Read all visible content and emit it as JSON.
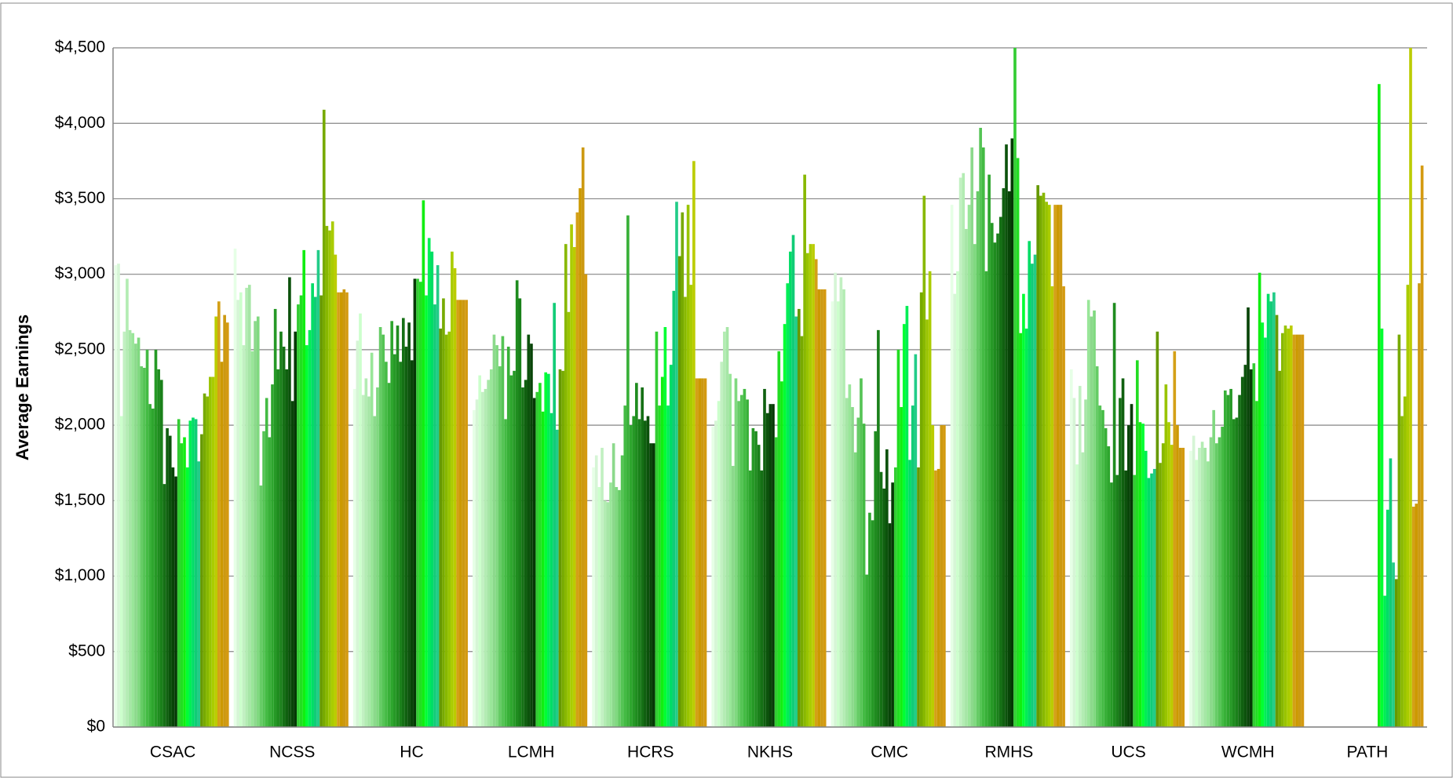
{
  "chart_data": {
    "type": "bar",
    "y_label": "Average Earnings",
    "categories": [
      "CSAC",
      "NCSS",
      "HC",
      "LCMH",
      "HCRS",
      "NKHS",
      "CMC",
      "RMHS",
      "UCS",
      "WCMH",
      "PATH"
    ],
    "ylim": [
      0,
      4500
    ],
    "yticks": [
      {
        "value": 0,
        "label": "$0"
      },
      {
        "value": 500,
        "label": "$500"
      },
      {
        "value": 1000,
        "label": "$1,000"
      },
      {
        "value": 1500,
        "label": "$1,500"
      },
      {
        "value": 2000,
        "label": "$2,000"
      },
      {
        "value": 2500,
        "label": "$2,500"
      },
      {
        "value": 3000,
        "label": "$3,000"
      },
      {
        "value": 3500,
        "label": "$3,500"
      },
      {
        "value": 4000,
        "label": "$4,000"
      },
      {
        "value": 4500,
        "label": "$4,500"
      }
    ],
    "grid": true,
    "colors": [
      "#e6ffe6",
      "#d6f5d6",
      "#ccffcc",
      "#c2f0c2",
      "#b3ecb3",
      "#a6e6a6",
      "#99e699",
      "#8cd98c",
      "#80d980",
      "#66cc66",
      "#55c455",
      "#44bb44",
      "#38b038",
      "#2ea62e",
      "#269926",
      "#1f8c1f",
      "#1a801a",
      "#157015",
      "#106010",
      "#0c520c",
      "#084408",
      "#053805",
      "#33cc33",
      "#22dd22",
      "#11ee11",
      "#00ff33",
      "#00ee55",
      "#00dd66",
      "#11cc77",
      "#22cc88",
      "#669900",
      "#77aa00",
      "#88b800",
      "#99c400",
      "#aacc00",
      "#bbcc00",
      "#d4a017",
      "#cc9900",
      "#cc9911",
      "#d49a11"
    ],
    "series_values": [
      [
        3060,
        3070,
        2060,
        2620,
        2970,
        2630,
        2610,
        2540,
        2580,
        2390,
        2380,
        2500,
        2140,
        2110,
        2500,
        2370,
        2300,
        1610,
        1980,
        1930,
        1720,
        1660,
        2040,
        1880,
        1920,
        1720,
        2030,
        2050,
        2040,
        1760,
        1940,
        2210,
        2190,
        2320,
        2320,
        2720,
        2820,
        2420,
        2730,
        2680
      ],
      [
        3170,
        2830,
        2880,
        2530,
        2910,
        2930,
        2490,
        2690,
        2720,
        1600,
        1960,
        2180,
        1920,
        2270,
        2770,
        2370,
        2620,
        2520,
        2370,
        2980,
        2160,
        2620,
        2800,
        2860,
        3160,
        2530,
        2630,
        2940,
        2850,
        3160,
        2860,
        4090,
        3320,
        3290,
        3350,
        3130,
        2880,
        2880,
        2900,
        2880
      ],
      [
        2240,
        2560,
        2740,
        2200,
        2310,
        2190,
        2480,
        2060,
        2250,
        2650,
        2600,
        2420,
        2280,
        2690,
        2470,
        2660,
        2420,
        2710,
        2520,
        2680,
        2430,
        2970,
        2970,
        2950,
        3490,
        2860,
        3240,
        3150,
        2800,
        3060,
        2640,
        2840,
        2600,
        2620,
        3150,
        3040,
        2830,
        2830,
        2830,
        2830
      ],
      [
        2100,
        2170,
        2330,
        2220,
        2240,
        2300,
        2370,
        2600,
        2530,
        2390,
        2590,
        2040,
        2520,
        2330,
        2360,
        2960,
        2840,
        2250,
        2300,
        2600,
        2540,
        2180,
        2220,
        2280,
        2090,
        2350,
        2340,
        2080,
        2810,
        1970,
        2370,
        2360,
        3200,
        2750,
        3330,
        3180,
        3410,
        3570,
        3840,
        3000
      ],
      [
        1720,
        1800,
        1590,
        1850,
        1500,
        1490,
        1620,
        1880,
        1590,
        1570,
        1800,
        2130,
        3390,
        2000,
        2060,
        2280,
        2040,
        2250,
        2030,
        2060,
        1880,
        1880,
        2620,
        2130,
        2320,
        2650,
        2130,
        2400,
        2890,
        3480,
        3120,
        3410,
        2850,
        3460,
        2930,
        3750,
        2310,
        2310,
        2310,
        2310
      ],
      [
        1990,
        2030,
        2160,
        2420,
        2620,
        2650,
        2340,
        1730,
        2310,
        2160,
        2200,
        2240,
        2170,
        1700,
        1980,
        1960,
        1870,
        1700,
        2240,
        2080,
        2140,
        2140,
        1920,
        2490,
        2290,
        2670,
        2940,
        3150,
        3260,
        2720,
        2770,
        2590,
        3660,
        3140,
        3200,
        3200,
        3100,
        2900,
        2900,
        2900
      ],
      [
        2820,
        3010,
        2820,
        2980,
        2900,
        2180,
        2270,
        2120,
        1820,
        2050,
        2310,
        2010,
        1010,
        1420,
        1370,
        1960,
        2630,
        1690,
        1580,
        1840,
        1350,
        1620,
        1720,
        2500,
        2120,
        2670,
        2790,
        1770,
        2130,
        2470,
        1720,
        2880,
        3520,
        2700,
        3020,
        2000,
        1700,
        1710,
        2000,
        2000
      ],
      [
        3460,
        2870,
        3020,
        3640,
        3670,
        3300,
        3460,
        3840,
        3200,
        3550,
        3970,
        3840,
        3020,
        3660,
        3340,
        3210,
        3270,
        3380,
        3570,
        3860,
        3550,
        3900,
        4500,
        3770,
        2610,
        2870,
        2640,
        3220,
        3070,
        3130,
        3590,
        3520,
        3540,
        3480,
        3460,
        2920,
        3460,
        3460,
        3460,
        2920
      ],
      [
        2370,
        2180,
        1740,
        2260,
        1820,
        2170,
        2830,
        2720,
        2760,
        2390,
        2130,
        2100,
        1980,
        1860,
        1620,
        2810,
        1670,
        2180,
        2310,
        1700,
        2000,
        2140,
        1670,
        2430,
        2020,
        2010,
        1830,
        1650,
        1680,
        1710,
        2620,
        1750,
        1880,
        2270,
        2020,
        1870,
        2490,
        2000,
        1850,
        1850
      ],
      [
        1830,
        1930,
        1770,
        1850,
        1890,
        1850,
        1760,
        1920,
        2100,
        1880,
        1920,
        1990,
        2230,
        2200,
        2240,
        2040,
        2050,
        2200,
        2320,
        2400,
        2780,
        2370,
        2410,
        2160,
        3010,
        2680,
        2580,
        2870,
        2820,
        2880,
        2730,
        2360,
        2610,
        2660,
        2640,
        2660,
        2600,
        2600,
        2600,
        2600
      ],
      [
        null,
        null,
        null,
        null,
        null,
        null,
        null,
        null,
        null,
        null,
        null,
        null,
        null,
        null,
        null,
        null,
        null,
        null,
        null,
        null,
        null,
        null,
        null,
        null,
        4260,
        2640,
        870,
        1440,
        1780,
        1090,
        980,
        2600,
        2060,
        2190,
        2930,
        4500,
        1460,
        1480,
        2940,
        3720
      ]
    ]
  }
}
